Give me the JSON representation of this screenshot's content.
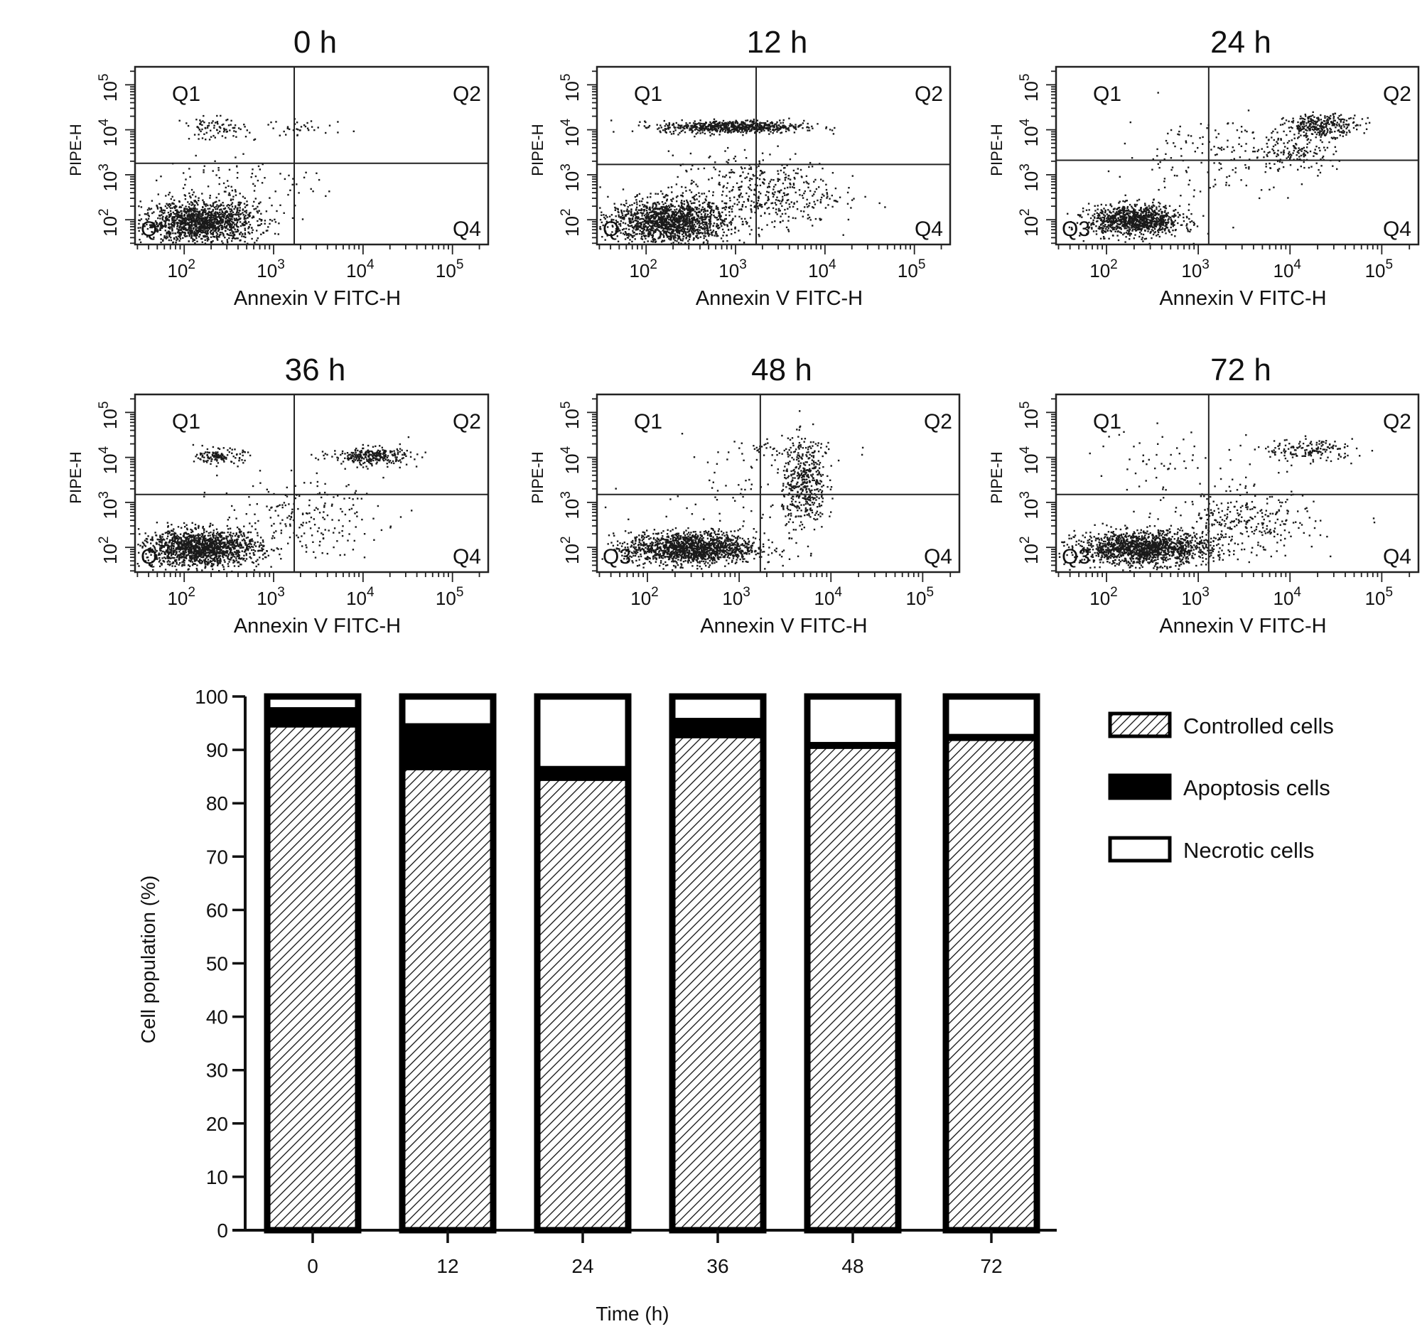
{
  "chart_data": [
    {
      "type": "scatter",
      "title": "0 h",
      "xlabel": "Annexin V FITC-H",
      "ylabel": "PIPE-H",
      "x_scale": "log",
      "y_scale": "log",
      "x_ticks": [
        "10^2",
        "10^3",
        "10^4",
        "10^5"
      ],
      "y_ticks": [
        "10^2",
        "10^3",
        "10^4",
        "10^5"
      ],
      "quadrants": [
        "Q1",
        "Q2",
        "Q3",
        "Q4"
      ],
      "quadrant_label_shown": [
        "Q1",
        "Q2",
        "Q",
        "Q4"
      ],
      "gate": {
        "x": 1700,
        "y": 1800
      },
      "clusters": [
        {
          "x": 150,
          "y": 90,
          "n": 1400,
          "sx": 0.32,
          "sy": 0.22
        },
        {
          "x": 220,
          "y": 11000,
          "n": 90,
          "sx": 0.18,
          "sy": 0.12
        },
        {
          "x": 2200,
          "y": 11000,
          "n": 35,
          "sx": 0.25,
          "sy": 0.1
        },
        {
          "x": 400,
          "y": 600,
          "n": 120,
          "sx": 0.45,
          "sy": 0.4
        }
      ]
    },
    {
      "type": "scatter",
      "title": "12 h",
      "xlabel": "Annexin V FITC-H",
      "ylabel": "PIPE-H",
      "x_scale": "log",
      "y_scale": "log",
      "x_ticks": [
        "10^2",
        "10^3",
        "10^4",
        "10^5"
      ],
      "y_ticks": [
        "10^2",
        "10^3",
        "10^4",
        "10^5"
      ],
      "quadrants": [
        "Q1",
        "Q2",
        "Q3",
        "Q4"
      ],
      "quadrant_label_shown": [
        "Q1",
        "Q2",
        "Q",
        "Q4"
      ],
      "gate": {
        "x": 1700,
        "y": 1700
      },
      "clusters": [
        {
          "x": 180,
          "y": 95,
          "n": 1500,
          "sx": 0.33,
          "sy": 0.24
        },
        {
          "x": 900,
          "y": 12000,
          "n": 650,
          "sx": 0.4,
          "sy": 0.07
        },
        {
          "x": 1500,
          "y": 500,
          "n": 350,
          "sx": 0.45,
          "sy": 0.4
        },
        {
          "x": 5000,
          "y": 300,
          "n": 90,
          "sx": 0.35,
          "sy": 0.35
        }
      ]
    },
    {
      "type": "scatter",
      "title": "24 h",
      "xlabel": "Annexin V FITC-H",
      "ylabel": "PIPE-H",
      "x_scale": "log",
      "y_scale": "log",
      "x_ticks": [
        "10^2",
        "10^3",
        "10^4",
        "10^5"
      ],
      "y_ticks": [
        "10^2",
        "10^3",
        "10^4",
        "10^5"
      ],
      "quadrants": [
        "Q1",
        "Q2",
        "Q3",
        "Q4"
      ],
      "quadrant_label_shown": [
        "Q1",
        "Q2",
        "Q3",
        "Q4"
      ],
      "gate": {
        "x": 1300,
        "y": 2100
      },
      "clusters": [
        {
          "x": 200,
          "y": 100,
          "n": 1000,
          "sx": 0.25,
          "sy": 0.17
        },
        {
          "x": 22000,
          "y": 13000,
          "n": 300,
          "sx": 0.2,
          "sy": 0.12
        },
        {
          "x": 12000,
          "y": 3500,
          "n": 140,
          "sx": 0.2,
          "sy": 0.25
        },
        {
          "x": 1500,
          "y": 3000,
          "n": 160,
          "sx": 0.5,
          "sy": 0.45
        }
      ]
    },
    {
      "type": "scatter",
      "title": "36 h",
      "xlabel": "Annexin V FITC-H",
      "ylabel": "PIPE-H",
      "x_scale": "log",
      "y_scale": "log",
      "x_ticks": [
        "10^2",
        "10^3",
        "10^4",
        "10^5"
      ],
      "y_ticks": [
        "10^2",
        "10^3",
        "10^4",
        "10^5"
      ],
      "quadrants": [
        "Q1",
        "Q2",
        "Q3",
        "Q4"
      ],
      "quadrant_label_shown": [
        "Q1",
        "Q2",
        "Q",
        "Q4"
      ],
      "gate": {
        "x": 1700,
        "y": 1500
      },
      "clusters": [
        {
          "x": 150,
          "y": 100,
          "n": 1500,
          "sx": 0.33,
          "sy": 0.2
        },
        {
          "x": 250,
          "y": 11000,
          "n": 130,
          "sx": 0.13,
          "sy": 0.08
        },
        {
          "x": 12000,
          "y": 11000,
          "n": 280,
          "sx": 0.22,
          "sy": 0.1
        },
        {
          "x": 2000,
          "y": 500,
          "n": 200,
          "sx": 0.45,
          "sy": 0.4
        }
      ]
    },
    {
      "type": "scatter",
      "title": "48 h",
      "xlabel": "Annexin V FITC-H",
      "ylabel": "PIPE-H",
      "x_scale": "log",
      "y_scale": "log",
      "x_ticks": [
        "10^2",
        "10^3",
        "10^4",
        "10^5"
      ],
      "y_ticks": [
        "10^2",
        "10^3",
        "10^4",
        "10^5"
      ],
      "quadrants": [
        "Q1",
        "Q2",
        "Q3",
        "Q4"
      ],
      "quadrant_label_shown": [
        "Q1",
        "Q2",
        "Q3",
        "Q4"
      ],
      "gate": {
        "x": 1700,
        "y": 1500
      },
      "clusters": [
        {
          "x": 300,
          "y": 100,
          "n": 1500,
          "sx": 0.35,
          "sy": 0.18
        },
        {
          "x": 5000,
          "y": 2500,
          "n": 420,
          "sx": 0.12,
          "sy": 0.5
        },
        {
          "x": 3500,
          "y": 15000,
          "n": 60,
          "sx": 0.35,
          "sy": 0.15
        },
        {
          "x": 800,
          "y": 3000,
          "n": 60,
          "sx": 0.5,
          "sy": 0.5
        }
      ]
    },
    {
      "type": "scatter",
      "title": "72 h",
      "xlabel": "Annexin V FITC-H",
      "ylabel": "PIPE-H",
      "x_scale": "log",
      "y_scale": "log",
      "x_ticks": [
        "10^2",
        "10^3",
        "10^4",
        "10^5"
      ],
      "y_ticks": [
        "10^2",
        "10^3",
        "10^4",
        "10^5"
      ],
      "quadrants": [
        "Q1",
        "Q2",
        "Q3",
        "Q4"
      ],
      "quadrant_label_shown": [
        "Q1",
        "Q2",
        "Q3",
        "Q4"
      ],
      "gate": {
        "x": 1300,
        "y": 1500
      },
      "clusters": [
        {
          "x": 250,
          "y": 100,
          "n": 1500,
          "sx": 0.36,
          "sy": 0.18
        },
        {
          "x": 16000,
          "y": 15000,
          "n": 160,
          "sx": 0.25,
          "sy": 0.12
        },
        {
          "x": 3000,
          "y": 350,
          "n": 300,
          "sx": 0.4,
          "sy": 0.35
        },
        {
          "x": 600,
          "y": 8000,
          "n": 60,
          "sx": 0.5,
          "sy": 0.4
        }
      ]
    },
    {
      "type": "bar",
      "stacked": true,
      "categories": [
        "0",
        "12",
        "24",
        "36",
        "48",
        "72"
      ],
      "series": [
        {
          "name": "Controlled cells",
          "values": [
            94.5,
            86.5,
            84.5,
            92.5,
            90.5,
            92
          ]
        },
        {
          "name": "Apoptosis cells",
          "values": [
            3.5,
            8.5,
            2.5,
            3.5,
            1,
            1
          ]
        },
        {
          "name": "Necrotic cells",
          "values": [
            2,
            5,
            13,
            4,
            8.5,
            7
          ]
        }
      ],
      "xlabel": "Time (h)",
      "ylabel": "Cell population (%)",
      "ylim": [
        0,
        100
      ],
      "y_ticks": [
        0,
        10,
        20,
        30,
        40,
        50,
        60,
        70,
        80,
        90,
        100
      ],
      "grid": false,
      "legend_position": "right",
      "fills": [
        "hatched",
        "#000000",
        "#ffffff"
      ]
    }
  ]
}
